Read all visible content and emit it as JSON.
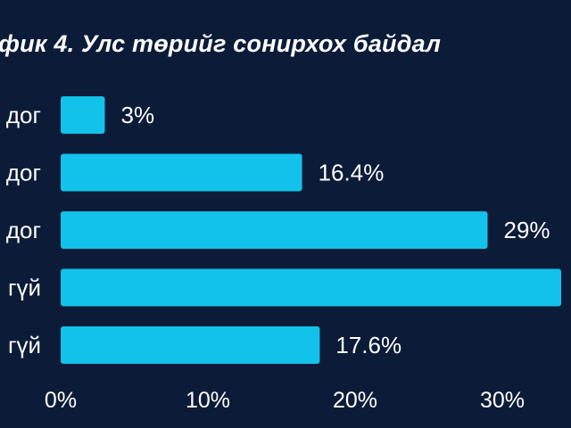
{
  "chart_data": {
    "type": "bar",
    "orientation": "horizontal",
    "title": "фик 4. Улс төрийг сонирхох байдал",
    "categories": [
      "дог",
      "дог",
      "дог",
      "гүй",
      "гүй"
    ],
    "values": [
      3,
      16.4,
      29,
      34,
      17.6
    ],
    "value_labels": [
      "3%",
      "16.4%",
      "29%",
      "",
      "17.6%"
    ],
    "xlim": [
      0,
      34
    ],
    "xticks": [
      0,
      10,
      20,
      30
    ],
    "xtick_labels": [
      "0%",
      "10%",
      "20%",
      "30%"
    ],
    "grid": false,
    "colors": {
      "bar": "#12c2ea",
      "background": "#0c1c38",
      "text": "#ffffff"
    }
  }
}
